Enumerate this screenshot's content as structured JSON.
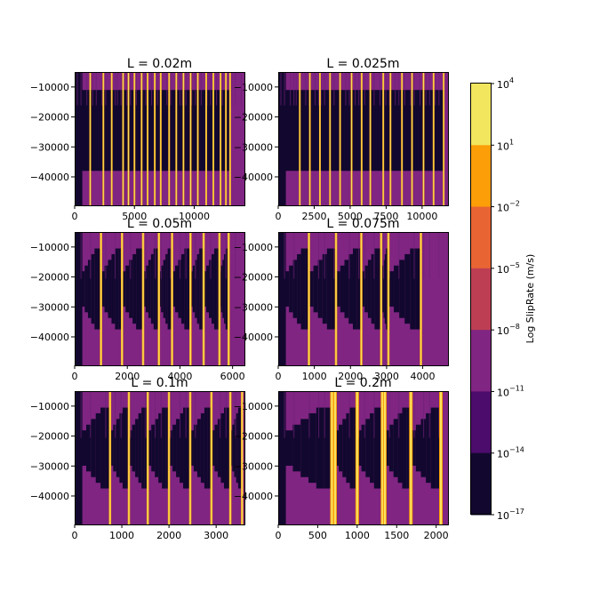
{
  "chart_data": [
    {
      "type": "heatmap",
      "title": "L = 0.02m",
      "xlim": [
        0,
        14200
      ],
      "ylim": [
        -49500,
        -5000
      ],
      "xticks": [
        0,
        5000,
        10000
      ],
      "yticks": [
        -10000,
        -20000,
        -30000,
        -40000
      ],
      "events": [
        1300,
        2400,
        3100,
        4050,
        4500,
        5000,
        5600,
        6100,
        6700,
        7200,
        7900,
        8500,
        9100,
        9700,
        10300,
        11000,
        11600,
        12200,
        12650,
        13000
      ]
    },
    {
      "type": "heatmap",
      "title": "L = 0.025m",
      "xlim": [
        0,
        11800
      ],
      "ylim": [
        -49500,
        -5000
      ],
      "xticks": [
        0,
        2500,
        5000,
        7500,
        10000
      ],
      "yticks": [
        -10000,
        -20000,
        -30000,
        -40000
      ],
      "events": [
        1500,
        2200,
        2900,
        3600,
        4300,
        5100,
        5800,
        6400,
        7300,
        7800,
        8600,
        9300,
        10100,
        10800,
        11500
      ]
    },
    {
      "type": "heatmap",
      "title": "L = 0.05m",
      "xlim": [
        0,
        6450
      ],
      "ylim": [
        -49500,
        -5000
      ],
      "xticks": [
        0,
        2000,
        4000,
        6000
      ],
      "yticks": [
        -10000,
        -20000,
        -30000,
        -40000
      ],
      "events": [
        1000,
        1800,
        2600,
        3200,
        3700,
        4400,
        4900,
        5500,
        5850
      ]
    },
    {
      "type": "heatmap",
      "title": "L = 0.075m",
      "xlim": [
        0,
        4700
      ],
      "ylim": [
        -49500,
        -5000
      ],
      "xticks": [
        0,
        1000,
        2000,
        3000,
        4000
      ],
      "yticks": [
        -10000,
        -20000,
        -30000,
        -40000
      ],
      "events": [
        850,
        1600,
        2300,
        2850,
        3050,
        3950
      ]
    },
    {
      "type": "heatmap",
      "title": "L = 0.1m",
      "xlim": [
        0,
        3600
      ],
      "ylim": [
        -49500,
        -5000
      ],
      "xticks": [
        0,
        1000,
        2000,
        3000
      ],
      "yticks": [
        -10000,
        -20000,
        -30000,
        -40000
      ],
      "events": [
        750,
        1150,
        1550,
        2000,
        2450,
        2900,
        3300,
        3550
      ]
    },
    {
      "type": "heatmap",
      "title": "L = 0.2m",
      "xlim": [
        0,
        2150
      ],
      "ylim": [
        -49500,
        -5000
      ],
      "xticks": [
        0,
        500,
        1000,
        1500,
        2000
      ],
      "yticks": [
        -10000,
        -20000,
        -30000,
        -40000
      ],
      "events": [
        680,
        720,
        1000,
        1320,
        1350,
        1680,
        2060
      ]
    }
  ],
  "colorbar": {
    "label": "Log SlipRate (m/s)",
    "tick_labels": [
      {
        "base": "10",
        "exp": "4"
      },
      {
        "base": "10",
        "exp": "1"
      },
      {
        "base": "10",
        "exp": "−2"
      },
      {
        "base": "10",
        "exp": "−5"
      },
      {
        "base": "10",
        "exp": "−8"
      },
      {
        "base": "10",
        "exp": "−11"
      },
      {
        "base": "10",
        "exp": "−14"
      },
      {
        "base": "10",
        "exp": "−17"
      }
    ],
    "band_colors_top_to_bottom": [
      "#f1e65e",
      "#fb9e07",
      "#e86432",
      "#bd3e53",
      "#802582",
      "#4b0c6b",
      "#12082f"
    ]
  },
  "colors": {
    "locked": "#12082f",
    "creep": "#802582",
    "creep_dark": "#6e2177",
    "event": "#fb9e07",
    "event_core": "#f8e260",
    "interseismic": "#bd3e53"
  }
}
